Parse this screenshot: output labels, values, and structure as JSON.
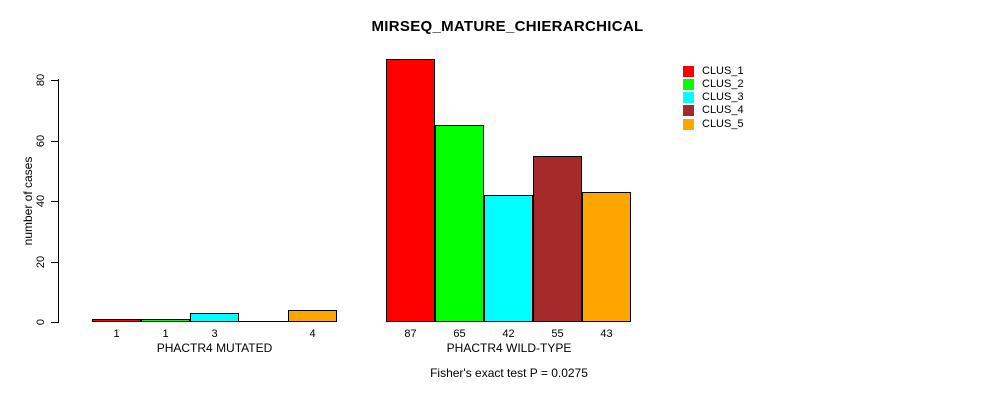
{
  "chart_data": {
    "type": "bar",
    "title": "MIRSEQ_MATURE_CHIERARCHICAL",
    "ylabel": "number of cases",
    "xlabel": "",
    "annotation": "Fisher's exact test P = 0.0275",
    "categories": [
      "PHACTR4 MUTATED",
      "PHACTR4 WILD-TYPE"
    ],
    "series": [
      {
        "name": "CLUS_1",
        "color": "#FF0000",
        "values": [
          1,
          87
        ]
      },
      {
        "name": "CLUS_2",
        "color": "#00FF00",
        "values": [
          1,
          65
        ]
      },
      {
        "name": "CLUS_3",
        "color": "#00FFFF",
        "values": [
          3,
          42
        ]
      },
      {
        "name": "CLUS_4",
        "color": "#A52A2A",
        "values": [
          0,
          55
        ]
      },
      {
        "name": "CLUS_5",
        "color": "#FFA500",
        "values": [
          4,
          43
        ]
      }
    ],
    "yticks": [
      0,
      20,
      40,
      60,
      80
    ],
    "ylim": [
      0,
      88
    ],
    "grid": false,
    "legend_position": "topright",
    "bar_value_labels": true,
    "zero_bars_drawn_flat": true
  }
}
